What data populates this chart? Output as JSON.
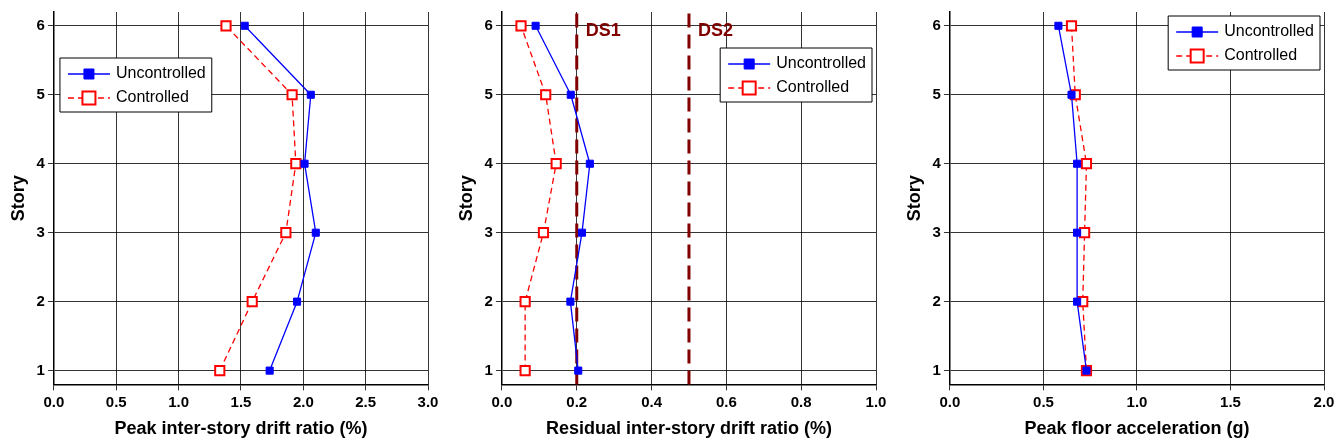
{
  "chart_data": [
    {
      "type": "line",
      "xlabel": "Peak inter-story drift ratio (%)",
      "ylabel": "Story",
      "series": [
        {
          "name": "Uncontrolled",
          "color": "#0000ff",
          "marker": "square",
          "line_style": "solid",
          "x": [
            1.73,
            1.95,
            2.1,
            2.01,
            2.06,
            1.53
          ],
          "values": [
            1,
            2,
            3,
            4,
            5,
            6
          ]
        },
        {
          "name": "Controlled",
          "color": "#ff0000",
          "marker": "square",
          "line_style": "dashed",
          "x": [
            1.33,
            1.59,
            1.86,
            1.94,
            1.91,
            1.38
          ],
          "values": [
            1,
            2,
            3,
            4,
            5,
            6
          ]
        }
      ],
      "xlim": [
        0,
        3
      ],
      "xticks": [
        {
          "value": 0,
          "label": "0.0"
        },
        {
          "value": 0.5,
          "label": "0.5"
        },
        {
          "value": 1,
          "label": "1.0"
        },
        {
          "value": 1.5,
          "label": "1.5"
        },
        {
          "value": 2,
          "label": "2.0"
        },
        {
          "value": 2.5,
          "label": "2.5"
        },
        {
          "value": 3,
          "label": "3.0"
        }
      ],
      "ylim": [
        0.8,
        6.2
      ],
      "yticks": [
        1,
        2,
        3,
        4,
        5,
        6
      ],
      "grid": true,
      "legend": "top left"
    },
    {
      "type": "line",
      "xlabel": "Residual inter-story drift ratio (%)",
      "ylabel": "Story",
      "series": [
        {
          "name": "Uncontrolled",
          "color": "#0000ff",
          "marker": "square",
          "line_style": "solid",
          "x": [
            0.204,
            0.183,
            0.214,
            0.235,
            0.184,
            0.09
          ],
          "values": [
            1,
            2,
            3,
            4,
            5,
            6
          ]
        },
        {
          "name": "Controlled",
          "color": "#ff0000",
          "marker": "square",
          "line_style": "dashed",
          "x": [
            0.062,
            0.062,
            0.111,
            0.145,
            0.117,
            0.051
          ],
          "values": [
            1,
            2,
            3,
            4,
            5,
            6
          ]
        }
      ],
      "xlim": [
        0,
        1
      ],
      "xticks": [
        {
          "value": 0,
          "label": "0.0"
        },
        {
          "value": 0.2,
          "label": "0.2"
        },
        {
          "value": 0.4,
          "label": "0.4"
        },
        {
          "value": 0.6,
          "label": "0.6"
        },
        {
          "value": 0.8,
          "label": "0.8"
        },
        {
          "value": 1,
          "label": "1.0"
        }
      ],
      "ylim": [
        0.8,
        6.2
      ],
      "yticks": [
        1,
        2,
        3,
        4,
        5,
        6
      ],
      "grid": true,
      "legend": "top right",
      "ref_lines": [
        {
          "axis": "x",
          "value": 0.2,
          "label": "DS1",
          "color": "#800000",
          "line_style": "dashed"
        },
        {
          "axis": "x",
          "value": 0.5,
          "label": "DS2",
          "color": "#800000",
          "line_style": "dashed"
        }
      ]
    },
    {
      "type": "line",
      "xlabel": "Peak floor acceleration (g)",
      "ylabel": "Story",
      "series": [
        {
          "name": "Uncontrolled",
          "color": "#0000ff",
          "marker": "square",
          "line_style": "solid",
          "x": [
            0.73,
            0.68,
            0.68,
            0.68,
            0.65,
            0.58
          ],
          "values": [
            1,
            2,
            3,
            4,
            5,
            6
          ]
        },
        {
          "name": "Controlled",
          "color": "#ff0000",
          "marker": "square",
          "line_style": "dashed",
          "x": [
            0.73,
            0.71,
            0.72,
            0.73,
            0.67,
            0.65
          ],
          "values": [
            1,
            2,
            3,
            4,
            5,
            6
          ]
        }
      ],
      "xlim": [
        0,
        2
      ],
      "xticks": [
        {
          "value": 0,
          "label": "0.0"
        },
        {
          "value": 0.5,
          "label": "0.5"
        },
        {
          "value": 1,
          "label": "1.0"
        },
        {
          "value": 1.5,
          "label": "1.5"
        },
        {
          "value": 2,
          "label": "2.0"
        }
      ],
      "ylim": [
        0.8,
        6.2
      ],
      "yticks": [
        1,
        2,
        3,
        4,
        5,
        6
      ],
      "grid": true,
      "legend": "top right"
    }
  ]
}
